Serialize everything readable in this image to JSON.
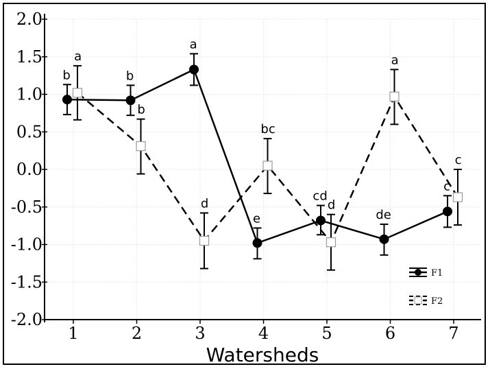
{
  "chart_data": {
    "type": "line",
    "xlabel": "Watersheds",
    "ylabel": "",
    "ylim": [
      -2.0,
      2.0
    ],
    "y_ticks": [
      "2.0",
      "1.5",
      "1.0",
      "0.5",
      "0.0",
      "-0.5",
      "-1.0",
      "-1.5",
      "-2.0"
    ],
    "y_tick_values": [
      2.0,
      1.5,
      1.0,
      0.5,
      0.0,
      -0.5,
      -1.0,
      -1.5,
      -2.0
    ],
    "categories": [
      "1",
      "2",
      "3",
      "4",
      "5",
      "6",
      "7"
    ],
    "x": [
      1,
      2,
      3,
      4,
      5,
      6,
      7
    ],
    "grid": true,
    "legend_position": "bottom-right",
    "series": [
      {
        "name": "F1",
        "style": "solid",
        "marker": "filled-circle",
        "values": [
          0.93,
          0.92,
          1.33,
          -0.98,
          -0.68,
          -0.93,
          -0.56
        ],
        "error_low": [
          0.73,
          0.72,
          1.12,
          -1.19,
          -0.87,
          -1.14,
          -0.77
        ],
        "error_high": [
          1.13,
          1.12,
          1.54,
          -0.78,
          -0.48,
          -0.73,
          -0.35
        ],
        "letters": [
          "b",
          "b",
          "a",
          "e",
          "cd",
          "de",
          "c"
        ]
      },
      {
        "name": "F2",
        "style": "dashed",
        "marker": "open-square",
        "values": [
          1.02,
          0.31,
          -0.95,
          0.05,
          -0.97,
          0.97,
          -0.37
        ],
        "error_low": [
          0.66,
          -0.06,
          -1.32,
          -0.32,
          -1.34,
          0.6,
          -0.74
        ],
        "error_high": [
          1.38,
          0.67,
          -0.58,
          0.41,
          -0.6,
          1.33,
          0.0
        ],
        "letters": [
          "a",
          "b",
          "d",
          "bc",
          "d",
          "a",
          "c"
        ]
      }
    ]
  }
}
